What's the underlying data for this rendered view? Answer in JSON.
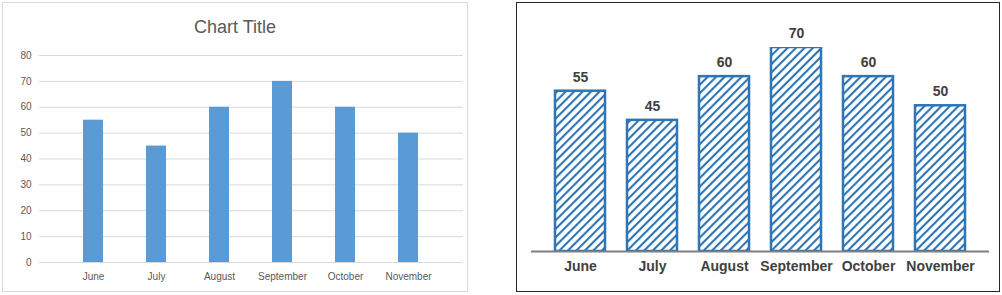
{
  "chart_data": [
    {
      "type": "bar",
      "title": "Chart Title",
      "categories": [
        "June",
        "July",
        "August",
        "September",
        "October",
        "November"
      ],
      "values": [
        55,
        45,
        60,
        70,
        60,
        50
      ],
      "color": "#5b9bd5",
      "ylim": [
        0,
        80
      ],
      "yticks": [
        0,
        10,
        20,
        30,
        40,
        50,
        60,
        70,
        80
      ],
      "grid": true
    },
    {
      "type": "bar",
      "categories": [
        "June",
        "July",
        "August",
        "September",
        "October",
        "November"
      ],
      "values": [
        55,
        45,
        60,
        70,
        60,
        50
      ],
      "color": "#2e75b6",
      "data_labels": true,
      "tick_labels": "x"
    }
  ]
}
